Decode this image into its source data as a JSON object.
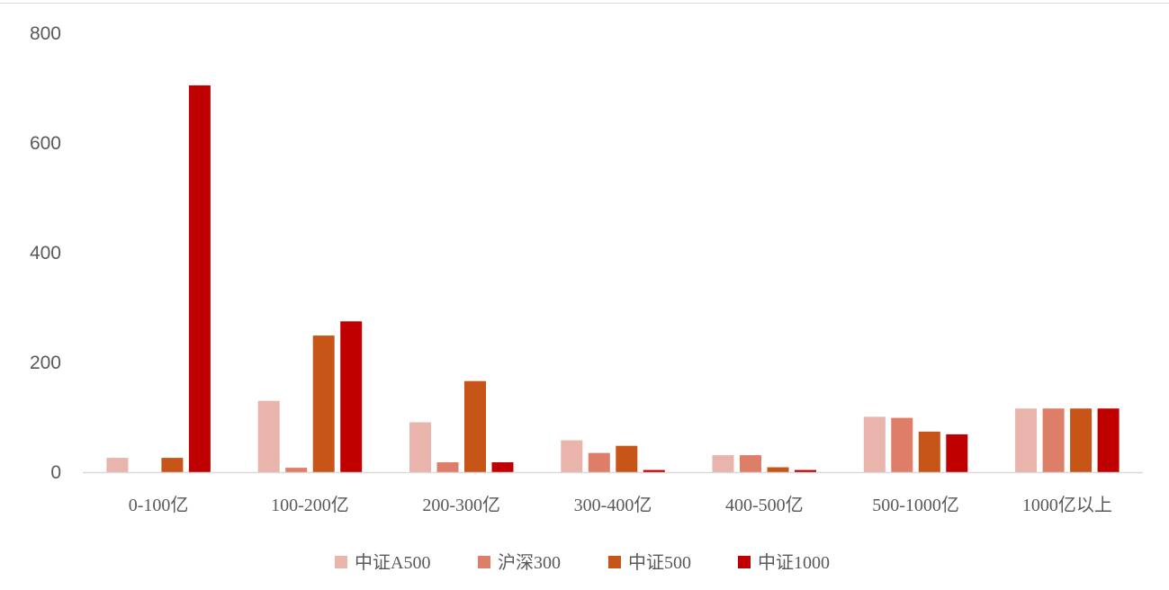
{
  "chart_data": {
    "type": "bar",
    "title": "",
    "xlabel": "",
    "ylabel": "",
    "ylim": [
      0,
      800
    ],
    "yticks": [
      0,
      200,
      400,
      600,
      800
    ],
    "grid": false,
    "legend_position": "bottom",
    "categories": [
      "0-100亿",
      "100-200亿",
      "200-300亿",
      "300-400亿",
      "400-500亿",
      "500-1000亿",
      "1000亿以上"
    ],
    "series": [
      {
        "name": "中证A500",
        "color": "#e8b4ac",
        "values": [
          26,
          130,
          91,
          58,
          31,
          101,
          116
        ]
      },
      {
        "name": "沪深300",
        "color": "#de7e69",
        "values": [
          0,
          8,
          18,
          35,
          31,
          99,
          116
        ]
      },
      {
        "name": "中证500",
        "color": "#c75517",
        "values": [
          26,
          249,
          166,
          48,
          9,
          74,
          116
        ]
      },
      {
        "name": "中证1000",
        "color": "#c00000",
        "values": [
          705,
          275,
          18,
          4,
          4,
          69,
          116
        ]
      }
    ]
  }
}
